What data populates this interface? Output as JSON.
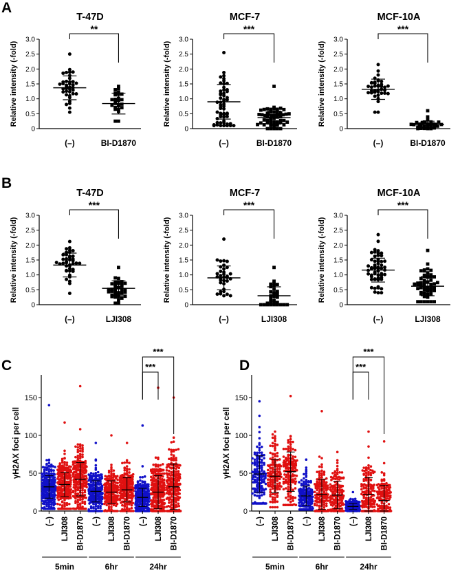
{
  "figure": {
    "panel_labels": [
      "A",
      "B",
      "C",
      "D"
    ],
    "dot_colors": {
      "control": "#1010c8",
      "treated": "#e01010",
      "black": "#000000"
    }
  },
  "chart_data": [
    {
      "id": "A1",
      "panel": "A",
      "type": "scatter",
      "title": "T-47D",
      "ylabel": "Relative intensity (-fold)",
      "categories": [
        "(–)",
        "BI-D1870"
      ],
      "ylim": [
        0,
        3.0
      ],
      "yticks": [
        "0",
        "0.5",
        "1.0",
        "1.5",
        "2.0",
        "2.5",
        "3.0"
      ],
      "series": [
        {
          "name": "(–)",
          "mean": 1.37,
          "sd": 0.4,
          "n": 38,
          "spread": [
            0.55,
            2.5
          ]
        },
        {
          "name": "BI-D1870",
          "mean": 0.84,
          "sd": 0.35,
          "n": 26,
          "spread": [
            0.25,
            1.42
          ]
        }
      ],
      "significance": "**"
    },
    {
      "id": "A2",
      "panel": "A",
      "type": "scatter",
      "title": "MCF-7",
      "ylabel": "Relative intensity (-fold)",
      "categories": [
        "(–)",
        "BI-D1870"
      ],
      "ylim": [
        0,
        3.0
      ],
      "yticks": [
        "0",
        "0.5",
        "1.0",
        "1.5",
        "2.0",
        "2.5",
        "3.0"
      ],
      "series": [
        {
          "name": "(–)",
          "mean": 0.9,
          "sd": 0.58,
          "n": 56,
          "spread": [
            0.1,
            2.55
          ]
        },
        {
          "name": "BI-D1870",
          "mean": 0.37,
          "sd": 0.22,
          "n": 56,
          "spread": [
            0.0,
            1.42
          ]
        }
      ],
      "significance": "***"
    },
    {
      "id": "A3",
      "panel": "A",
      "type": "scatter",
      "title": "MCF-10A",
      "ylabel": "Relative intensity (-fold)",
      "categories": [
        "(–)",
        "BI-D1870"
      ],
      "ylim": [
        0,
        3.0
      ],
      "yticks": [
        "0",
        "0.5",
        "1.0",
        "1.5",
        "2.0",
        "2.5",
        "3.0"
      ],
      "series": [
        {
          "name": "(–)",
          "mean": 1.32,
          "sd": 0.34,
          "n": 38,
          "spread": [
            0.55,
            2.15
          ]
        },
        {
          "name": "BI-D1870",
          "mean": 0.14,
          "sd": 0.11,
          "n": 30,
          "spread": [
            0.0,
            0.6
          ]
        }
      ],
      "significance": "***"
    },
    {
      "id": "B1",
      "panel": "B",
      "type": "scatter",
      "title": "T-47D",
      "ylabel": "Relative intensity (-fold)",
      "categories": [
        "(–)",
        "LJI308"
      ],
      "ylim": [
        0,
        3.0
      ],
      "yticks": [
        "0",
        "0.5",
        "1.0",
        "1.5",
        "2.0",
        "2.5",
        "3.0"
      ],
      "series": [
        {
          "name": "(–)",
          "mean": 1.33,
          "sd": 0.4,
          "n": 40,
          "spread": [
            0.38,
            2.12
          ]
        },
        {
          "name": "LJI308",
          "mean": 0.55,
          "sd": 0.25,
          "n": 38,
          "spread": [
            0.05,
            1.25
          ]
        }
      ],
      "significance": "***"
    },
    {
      "id": "B2",
      "panel": "B",
      "type": "scatter",
      "title": "MCF-7",
      "ylabel": "Relative intensity (-fold)",
      "categories": [
        "(–)",
        "LJI308"
      ],
      "ylim": [
        0,
        3.0
      ],
      "yticks": [
        "0",
        "0.5",
        "1.0",
        "1.5",
        "2.0",
        "2.5",
        "3.0"
      ],
      "series": [
        {
          "name": "(–)",
          "mean": 0.9,
          "sd": 0.4,
          "n": 34,
          "spread": [
            0.3,
            2.2
          ]
        },
        {
          "name": "LJI308",
          "mean": 0.3,
          "sd": 0.3,
          "n": 32,
          "spread": [
            0.0,
            1.25
          ]
        }
      ],
      "significance": "***"
    },
    {
      "id": "B3",
      "panel": "B",
      "type": "scatter",
      "title": "MCF-10A",
      "ylabel": "Relative intensity (-fold)",
      "categories": [
        "(–)",
        "LJI308"
      ],
      "ylim": [
        0,
        3.0
      ],
      "yticks": [
        "0",
        "0.5",
        "1.0",
        "1.5",
        "2.0",
        "2.5",
        "3.0"
      ],
      "series": [
        {
          "name": "(–)",
          "mean": 1.16,
          "sd": 0.4,
          "n": 56,
          "spread": [
            0.4,
            2.35
          ]
        },
        {
          "name": "LJI308",
          "mean": 0.62,
          "sd": 0.32,
          "n": 56,
          "spread": [
            0.1,
            1.82
          ]
        }
      ],
      "significance": "***"
    },
    {
      "id": "C",
      "panel": "C",
      "type": "scatter",
      "ylabel": "γH2AX foci per cell",
      "categories": [
        "(–)",
        "LJI308",
        "BI-D1870",
        "(–)",
        "LJI308",
        "BI-D1870",
        "(–)",
        "LJI308",
        "BI-D1870"
      ],
      "groups": [
        "5min",
        "6hr",
        "24hr"
      ],
      "ylim": [
        0,
        180
      ],
      "yticks": [
        "0",
        "50",
        "100",
        "150"
      ],
      "series": [
        {
          "name": "5min (–)",
          "color": "blue",
          "mean": 32,
          "sd": 15,
          "n": 220,
          "spread": [
            3,
            140
          ]
        },
        {
          "name": "5min LJI308",
          "color": "red",
          "mean": 35,
          "sd": 16,
          "n": 220,
          "spread": [
            3,
            117
          ]
        },
        {
          "name": "5min BI-D1870",
          "color": "red",
          "mean": 42,
          "sd": 22,
          "n": 220,
          "spread": [
            3,
            165
          ]
        },
        {
          "name": "6hr (–)",
          "color": "blue",
          "mean": 26,
          "sd": 14,
          "n": 200,
          "spread": [
            0,
            90
          ]
        },
        {
          "name": "6hr LJI308",
          "color": "red",
          "mean": 25,
          "sd": 15,
          "n": 200,
          "spread": [
            0,
            100
          ]
        },
        {
          "name": "6hr BI-D1870",
          "color": "red",
          "mean": 28,
          "sd": 16,
          "n": 200,
          "spread": [
            0,
            90
          ]
        },
        {
          "name": "24hr (–)",
          "color": "blue",
          "mean": 18,
          "sd": 12,
          "n": 240,
          "spread": [
            0,
            113
          ]
        },
        {
          "name": "24hr LJI308",
          "color": "red",
          "mean": 25,
          "sd": 22,
          "n": 240,
          "spread": [
            0,
            163
          ]
        },
        {
          "name": "24hr BI-D1870",
          "color": "red",
          "mean": 32,
          "sd": 30,
          "n": 240,
          "spread": [
            0,
            150
          ]
        }
      ],
      "significance": [
        {
          "from": 6,
          "to": 7,
          "label": "***"
        },
        {
          "from": 6,
          "to": 8,
          "label": "***"
        }
      ]
    },
    {
      "id": "D",
      "panel": "D",
      "type": "scatter",
      "ylabel": "γH2AX foci per cell",
      "categories": [
        "(–)",
        "LJI308",
        "BI-D1870",
        "(–)",
        "LJI308",
        "BI-D1870",
        "(–)",
        "LJI308",
        "BI-D1870"
      ],
      "groups": [
        "5min",
        "6hr",
        "24hr"
      ],
      "ylim": [
        0,
        180
      ],
      "yticks": [
        "0",
        "50",
        "100",
        "150"
      ],
      "series": [
        {
          "name": "5min (–)",
          "color": "blue",
          "mean": 49,
          "sd": 24,
          "n": 150,
          "spread": [
            10,
            145
          ]
        },
        {
          "name": "5min LJI308",
          "color": "red",
          "mean": 46,
          "sd": 22,
          "n": 150,
          "spread": [
            5,
            105
          ]
        },
        {
          "name": "5min BI-D1870",
          "color": "red",
          "mean": 52,
          "sd": 26,
          "n": 150,
          "spread": [
            8,
            152
          ]
        },
        {
          "name": "6hr (–)",
          "color": "blue",
          "mean": 20,
          "sd": 13,
          "n": 150,
          "spread": [
            2,
            68
          ]
        },
        {
          "name": "6hr LJI308",
          "color": "red",
          "mean": 22,
          "sd": 20,
          "n": 150,
          "spread": [
            0,
            132
          ]
        },
        {
          "name": "6hr BI-D1870",
          "color": "red",
          "mean": 21,
          "sd": 18,
          "n": 150,
          "spread": [
            0,
            78
          ]
        },
        {
          "name": "24hr (–)",
          "color": "blue",
          "mean": 6,
          "sd": 4,
          "n": 150,
          "spread": [
            0,
            25
          ]
        },
        {
          "name": "24hr LJI308",
          "color": "red",
          "mean": 22,
          "sd": 22,
          "n": 150,
          "spread": [
            0,
            105
          ]
        },
        {
          "name": "24hr BI-D1870",
          "color": "red",
          "mean": 14,
          "sd": 20,
          "n": 150,
          "spread": [
            0,
            92
          ]
        }
      ],
      "significance": [
        {
          "from": 6,
          "to": 7,
          "label": "***"
        },
        {
          "from": 6,
          "to": 8,
          "label": "***"
        }
      ]
    }
  ]
}
